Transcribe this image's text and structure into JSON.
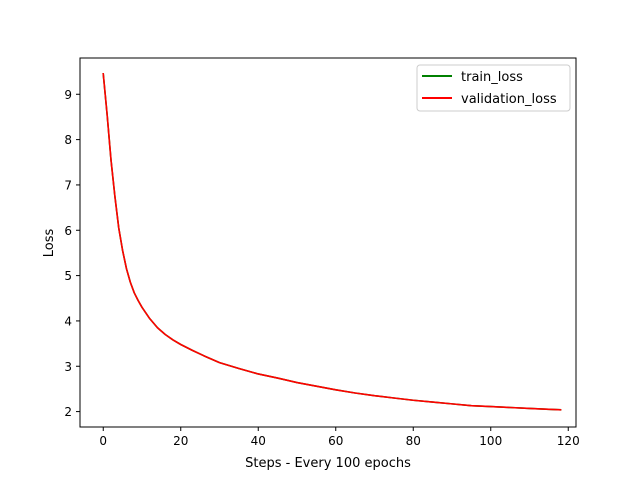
{
  "chart_data": {
    "type": "line",
    "title": "",
    "xlabel": "Steps - Every 100 epochs",
    "ylabel": "Loss",
    "xlim": [
      -6,
      122
    ],
    "ylim": [
      1.66,
      9.8
    ],
    "xticks": [
      0,
      20,
      40,
      60,
      80,
      100,
      120
    ],
    "yticks": [
      2,
      3,
      4,
      5,
      6,
      7,
      8,
      9
    ],
    "grid": false,
    "legend_position": "top-right",
    "x": [
      0,
      1,
      2,
      3,
      4,
      5,
      6,
      7,
      8,
      9,
      10,
      12,
      14,
      16,
      18,
      20,
      23,
      26,
      30,
      35,
      40,
      45,
      50,
      55,
      60,
      65,
      70,
      75,
      80,
      85,
      90,
      95,
      100,
      105,
      110,
      115,
      118
    ],
    "series": [
      {
        "name": "train_loss",
        "color": "#008000",
        "values": [
          9.45,
          8.55,
          7.55,
          6.75,
          6.05,
          5.55,
          5.15,
          4.85,
          4.62,
          4.45,
          4.3,
          4.05,
          3.85,
          3.7,
          3.58,
          3.48,
          3.35,
          3.23,
          3.08,
          2.95,
          2.83,
          2.74,
          2.64,
          2.56,
          2.48,
          2.41,
          2.35,
          2.3,
          2.25,
          2.21,
          2.17,
          2.13,
          2.11,
          2.09,
          2.07,
          2.05,
          2.04
        ]
      },
      {
        "name": "validation_loss",
        "color": "#ff0000",
        "values": [
          9.45,
          8.55,
          7.55,
          6.75,
          6.05,
          5.55,
          5.15,
          4.85,
          4.62,
          4.45,
          4.3,
          4.05,
          3.85,
          3.7,
          3.58,
          3.48,
          3.35,
          3.23,
          3.08,
          2.95,
          2.83,
          2.74,
          2.64,
          2.56,
          2.48,
          2.41,
          2.35,
          2.3,
          2.25,
          2.21,
          2.17,
          2.13,
          2.11,
          2.09,
          2.07,
          2.05,
          2.04
        ]
      }
    ]
  }
}
